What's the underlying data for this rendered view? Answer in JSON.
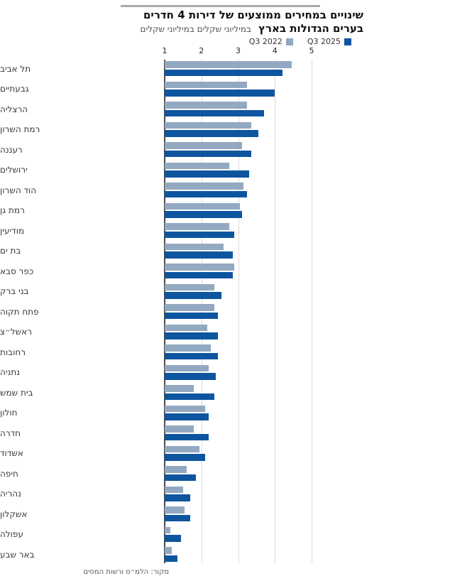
{
  "header": {
    "title_line1": "שינויים במחירים ממוצעים של דירות 4 חדרים",
    "title_line2_bold": "בערים הגדולות בארץ",
    "title_line2_note": "במיליוני שקלים במיליוני שקלים"
  },
  "legend": {
    "items": [
      {
        "label": "Q3 2022",
        "color": "#93a9c2"
      },
      {
        "label": "Q3 2025",
        "color": "#0e55a0"
      }
    ]
  },
  "chart_data": {
    "type": "bar",
    "orientation": "horizontal",
    "title": "שינויים במחירים ממוצעים של דירות 4 חדרים בערים הגדולות בארץ",
    "units": "מיליוני שקלים",
    "xlim": [
      1,
      5
    ],
    "x_ticks": [
      1,
      2,
      3,
      4,
      5
    ],
    "baseline": 1,
    "grid": true,
    "legend_position": "top",
    "categories": [
      "תל אביב",
      "גבעתיים",
      "הרצליה",
      "רמת השרון",
      "רעננה",
      "ירושלים",
      "הוד השרון",
      "רמת גן",
      "מודיעין",
      "בת ים",
      "כפר סבא",
      "בני ברק",
      "פתח תקוה",
      "ראשל״צ",
      "רחובות",
      "נתניה",
      "בית שמש",
      "חולון",
      "חדרה",
      "אשדוד",
      "חיפה",
      "נהריה",
      "אשקלון",
      "עפולה",
      "באר שבע"
    ],
    "series": [
      {
        "name": "Q3 2022",
        "color": "#93a9c2",
        "values": [
          4.45,
          3.25,
          3.25,
          3.35,
          3.1,
          2.75,
          3.15,
          3.05,
          2.75,
          2.6,
          2.9,
          2.35,
          2.35,
          2.15,
          2.25,
          2.2,
          1.8,
          2.1,
          1.8,
          1.95,
          1.6,
          1.5,
          1.55,
          1.15,
          1.2
        ]
      },
      {
        "name": "Q3 2025",
        "color": "#0e55a0",
        "values": [
          4.2,
          4.0,
          3.7,
          3.55,
          3.35,
          3.3,
          3.25,
          3.1,
          2.9,
          2.85,
          2.85,
          2.55,
          2.45,
          2.45,
          2.45,
          2.4,
          2.35,
          2.2,
          2.2,
          2.1,
          1.85,
          1.7,
          1.7,
          1.45,
          1.35
        ]
      }
    ]
  },
  "source": "מקור: הלמ״ס ורשות המסים"
}
